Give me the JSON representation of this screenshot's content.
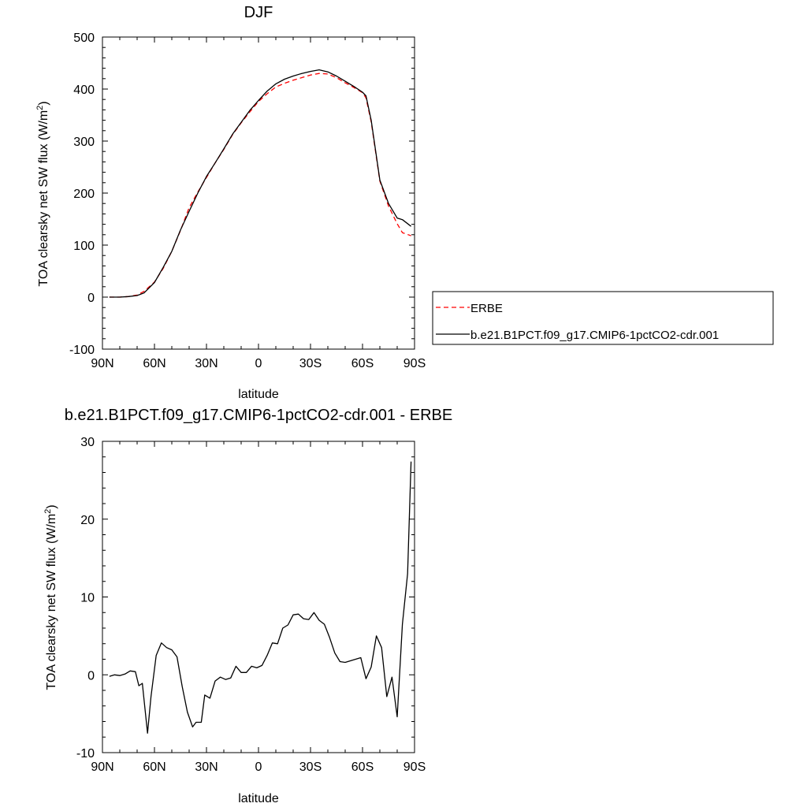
{
  "chart_data": [
    {
      "type": "line",
      "title": "DJF",
      "xlabel": "latitude",
      "ylabel_main": "TOA clearsky net SW flux (W/m",
      "ylabel_sup": "2",
      "ylabel_close": ")",
      "xlim": [
        -90,
        90
      ],
      "ylim": [
        -100,
        500
      ],
      "x_ticks": [
        {
          "value": -90,
          "label": "90N"
        },
        {
          "value": -60,
          "label": "60N"
        },
        {
          "value": -30,
          "label": "30N"
        },
        {
          "value": 0,
          "label": "0"
        },
        {
          "value": 30,
          "label": "30S"
        },
        {
          "value": 60,
          "label": "60S"
        },
        {
          "value": 90,
          "label": "90S"
        }
      ],
      "y_ticks": [
        -100,
        0,
        100,
        200,
        300,
        400,
        500
      ],
      "legend_position": "right",
      "series": [
        {
          "name": "ERBE",
          "color": "#ff0000",
          "dash": true,
          "x": [
            -86,
            -80,
            -75,
            -70,
            -66,
            -60,
            -55,
            -50,
            -45,
            -40,
            -35,
            -30,
            -25,
            -20,
            -15,
            -10,
            -5,
            0,
            5,
            10,
            15,
            20,
            25,
            30,
            35,
            40,
            45,
            50,
            55,
            60,
            62,
            65,
            70,
            75,
            80,
            83,
            88
          ],
          "values": [
            0,
            0,
            1,
            4,
            11,
            29,
            55,
            88,
            128,
            172,
            202,
            230,
            258,
            284,
            312,
            335,
            356,
            376,
            391,
            404,
            411,
            417,
            422,
            427,
            430,
            429,
            422,
            412,
            403,
            393,
            383,
            337,
            223,
            175,
            141,
            124,
            118
          ]
        },
        {
          "name": "b.e21.B1PCT.f09_g17.CMIP6-1pctCO2-cdr.001",
          "color": "#000000",
          "dash": false,
          "x": [
            -86,
            -80,
            -75,
            -70,
            -66,
            -60,
            -55,
            -50,
            -45,
            -40,
            -35,
            -30,
            -25,
            -20,
            -15,
            -10,
            -5,
            0,
            5,
            10,
            15,
            20,
            25,
            30,
            35,
            40,
            45,
            50,
            55,
            60,
            62,
            65,
            70,
            75,
            80,
            83,
            88
          ],
          "values": [
            0,
            0,
            1,
            3,
            8,
            28,
            57,
            88,
            129,
            165,
            200,
            232,
            258,
            285,
            313,
            336,
            359,
            378,
            396,
            410,
            419,
            425,
            430,
            434,
            437,
            433,
            425,
            415,
            405,
            394,
            387,
            340,
            225,
            180,
            152,
            149,
            136
          ]
        }
      ]
    },
    {
      "type": "line",
      "title": "b.e21.B1PCT.f09_g17.CMIP6-1pctCO2-cdr.001 - ERBE",
      "xlabel": "latitude",
      "ylabel_main": "TOA clearsky net SW flux (W/m",
      "ylabel_sup": "2",
      "ylabel_close": ")",
      "xlim": [
        -90,
        90
      ],
      "ylim": [
        -10,
        30
      ],
      "x_ticks": [
        {
          "value": -90,
          "label": "90N"
        },
        {
          "value": -60,
          "label": "60N"
        },
        {
          "value": -30,
          "label": "30N"
        },
        {
          "value": 0,
          "label": "0"
        },
        {
          "value": 30,
          "label": "30S"
        },
        {
          "value": 60,
          "label": "60S"
        },
        {
          "value": 90,
          "label": "90S"
        }
      ],
      "y_ticks": [
        -10,
        0,
        10,
        20,
        30
      ],
      "series": [
        {
          "color": "#000000",
          "dash": false,
          "x": [
            -86,
            -83,
            -80,
            -77,
            -74,
            -71,
            -69,
            -67,
            -64,
            -62,
            -59,
            -56,
            -53,
            -50,
            -47,
            -44,
            -41,
            -38,
            -36,
            -33,
            -31,
            -28,
            -25,
            -22,
            -19,
            -16,
            -13,
            -10,
            -7,
            -4,
            -1,
            2,
            5,
            8,
            11,
            14,
            17,
            20,
            23,
            26,
            29,
            32,
            35,
            38,
            41,
            44,
            47,
            50,
            53,
            56,
            59,
            62,
            65,
            68,
            71,
            74,
            77,
            80,
            83,
            86,
            88
          ],
          "values": [
            -0.2,
            0,
            -0.1,
            0.1,
            0.5,
            0.4,
            -1.4,
            -1.1,
            -7.5,
            -2.8,
            2.5,
            4.1,
            3.5,
            3.2,
            2.3,
            -1.5,
            -4.8,
            -6.7,
            -6.1,
            -6.1,
            -2.6,
            -3.0,
            -0.8,
            -0.3,
            -0.6,
            -0.4,
            1.1,
            0.3,
            0.3,
            1.1,
            0.9,
            1.2,
            2.5,
            4.1,
            4.0,
            6.0,
            6.4,
            7.7,
            7.8,
            7.2,
            7.1,
            8.0,
            7.0,
            6.5,
            4.8,
            2.8,
            1.7,
            1.6,
            1.8,
            2.0,
            2.2,
            -0.5,
            1.0,
            5.0,
            3.5,
            -2.8,
            -0.3,
            -5.4,
            6.5,
            13.0,
            27.4
          ]
        }
      ]
    }
  ],
  "legend": [
    {
      "label": "ERBE",
      "color": "#ff0000",
      "dash": true
    },
    {
      "label": "b.e21.B1PCT.f09_g17.CMIP6-1pctCO2-cdr.001",
      "color": "#000000",
      "dash": false
    }
  ]
}
